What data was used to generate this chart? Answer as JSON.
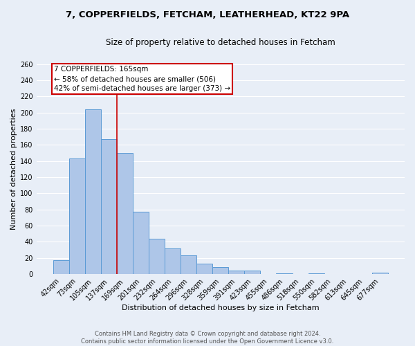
{
  "title_line1": "7, COPPERFIELDS, FETCHAM, LEATHERHEAD, KT22 9PA",
  "title_line2": "Size of property relative to detached houses in Fetcham",
  "xlabel": "Distribution of detached houses by size in Fetcham",
  "ylabel": "Number of detached properties",
  "footer_line1": "Contains HM Land Registry data © Crown copyright and database right 2024.",
  "footer_line2": "Contains public sector information licensed under the Open Government Licence v3.0.",
  "bar_labels": [
    "42sqm",
    "73sqm",
    "105sqm",
    "137sqm",
    "169sqm",
    "201sqm",
    "232sqm",
    "264sqm",
    "296sqm",
    "328sqm",
    "359sqm",
    "391sqm",
    "423sqm",
    "455sqm",
    "486sqm",
    "518sqm",
    "550sqm",
    "582sqm",
    "613sqm",
    "645sqm",
    "677sqm"
  ],
  "bar_values": [
    17,
    143,
    204,
    167,
    150,
    77,
    44,
    32,
    23,
    13,
    9,
    4,
    4,
    0,
    1,
    0,
    1,
    0,
    0,
    0,
    2
  ],
  "bar_color": "#aec6e8",
  "bar_edge_color": "#5b9bd5",
  "annotation_title": "7 COPPERFIELDS: 165sqm",
  "annotation_line2": "← 58% of detached houses are smaller (506)",
  "annotation_line3": "42% of semi-detached houses are larger (373) →",
  "annotation_box_color": "#ffffff",
  "annotation_box_edge_color": "#cc0000",
  "vline_color": "#cc0000",
  "vline_bar_index": 3,
  "ylim": [
    0,
    260
  ],
  "yticks": [
    0,
    20,
    40,
    60,
    80,
    100,
    120,
    140,
    160,
    180,
    200,
    220,
    240,
    260
  ],
  "bg_color": "#e8eef7",
  "plot_bg_color": "#e8eef7",
  "grid_color": "#ffffff",
  "title_fontsize": 9.5,
  "subtitle_fontsize": 8.5,
  "axis_label_fontsize": 8,
  "tick_fontsize": 7,
  "annotation_fontsize": 7.5,
  "footer_fontsize": 6
}
